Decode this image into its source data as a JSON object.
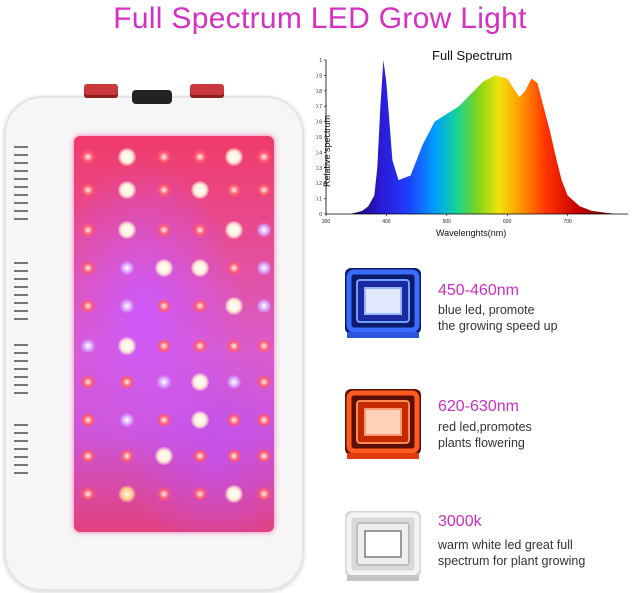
{
  "title": "Full Spectrum LED Grow Light",
  "colors": {
    "title": "#d62fc4",
    "feature_heading": "#cc2fbf",
    "blue_led": "#3a6cff",
    "red_led": "#ff4a20",
    "white_led": "#e8e8e8"
  },
  "chart_data": {
    "type": "area",
    "title": "Full Spectrum",
    "xlabel": "Wavelenghts(nm)",
    "ylabel": "Relative spectrum",
    "x_ticks": [
      "300",
      "400",
      "500",
      "600",
      "700"
    ],
    "y_ticks": [
      "0",
      "0.1",
      "0.2",
      "0.3",
      "0.4",
      "0.5",
      "0.6",
      "0.7",
      "0.8",
      "0.9",
      "1"
    ],
    "xlim": [
      300,
      800
    ],
    "ylim": [
      0,
      1
    ],
    "x": [
      340,
      350,
      360,
      370,
      380,
      385,
      390,
      395,
      400,
      410,
      420,
      440,
      460,
      480,
      500,
      520,
      540,
      560,
      580,
      600,
      610,
      620,
      630,
      640,
      650,
      660,
      670,
      680,
      690,
      700,
      720,
      740,
      760,
      780
    ],
    "y": [
      0.0,
      0.01,
      0.02,
      0.05,
      0.12,
      0.3,
      0.7,
      1.0,
      0.85,
      0.35,
      0.22,
      0.25,
      0.45,
      0.6,
      0.65,
      0.7,
      0.78,
      0.86,
      0.9,
      0.88,
      0.82,
      0.76,
      0.8,
      0.88,
      0.85,
      0.7,
      0.55,
      0.38,
      0.22,
      0.12,
      0.05,
      0.02,
      0.01,
      0.0
    ],
    "grid": false
  },
  "features": [
    {
      "heading": "450-460nm",
      "line1": "blue led, promote",
      "line2": "the growing speed up",
      "icon": "blue-led-chip-icon"
    },
    {
      "heading": "620-630nm",
      "line1": "red led,promotes",
      "line2": "plants flowering",
      "icon": "red-led-chip-icon"
    },
    {
      "heading": "3000k",
      "line1": "warm white led great full",
      "line2": "spectrum for plant growing",
      "icon": "white-led-chip-icon"
    }
  ]
}
